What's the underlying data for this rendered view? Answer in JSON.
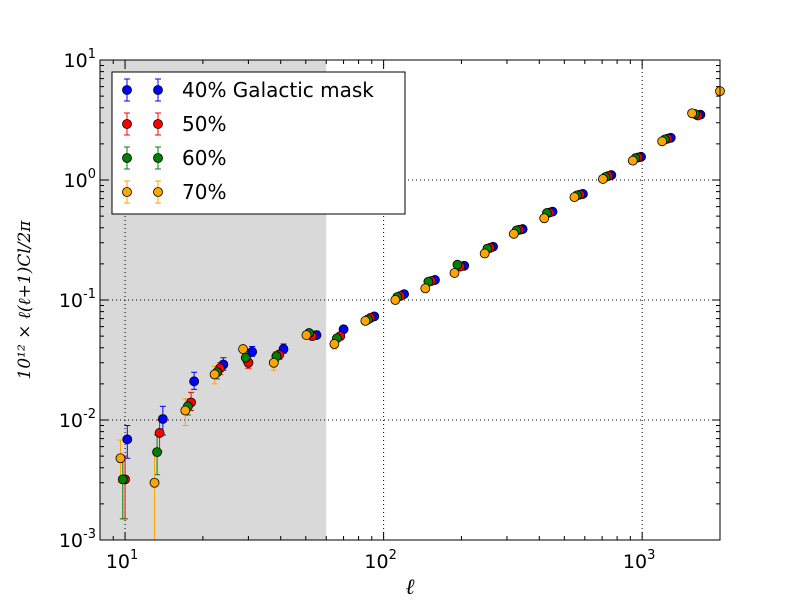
{
  "chart_data": {
    "type": "scatter",
    "xlabel": "ℓ",
    "ylabel": "10¹² × ℓ(ℓ+1)Cl/2π",
    "xscale": "log",
    "yscale": "log",
    "xlim": [
      8,
      2000
    ],
    "ylim": [
      0.001,
      10
    ],
    "grid": "dotted",
    "legend_position": "top-left",
    "shaded_region": {
      "x_from": 8,
      "x_to": 60,
      "color": "#d9d9d9"
    },
    "x_ticks": [
      {
        "value": 10,
        "base": "10",
        "exp": "1"
      },
      {
        "value": 100,
        "base": "10",
        "exp": "2"
      },
      {
        "value": 1000,
        "base": "10",
        "exp": "3"
      }
    ],
    "y_ticks": [
      {
        "value": 0.001,
        "base": "10",
        "exp": "-3"
      },
      {
        "value": 0.01,
        "base": "10",
        "exp": "-2"
      },
      {
        "value": 0.1,
        "base": "10",
        "exp": "-1"
      },
      {
        "value": 1,
        "base": "10",
        "exp": "0"
      },
      {
        "value": 10,
        "base": "10",
        "exp": "1"
      }
    ],
    "series": [
      {
        "name": "40% Galactic mask",
        "color": "#0000ff",
        "x": [
          10.2,
          14,
          18.5,
          24,
          31,
          41,
          55,
          70,
          92,
          120,
          158,
          205,
          265,
          345,
          450,
          590,
          760,
          990,
          1290,
          1680
        ],
        "y": [
          0.0069,
          0.0102,
          0.021,
          0.029,
          0.037,
          0.039,
          0.051,
          0.057,
          0.073,
          0.112,
          0.147,
          0.193,
          0.278,
          0.39,
          0.545,
          0.765,
          1.1,
          1.56,
          2.25,
          3.5
        ],
        "err_low": [
          0.0048,
          0.0075,
          0.018,
          0.026,
          0.034,
          0.036,
          0.048,
          0.054,
          0.07,
          0.108,
          0.142,
          0.187,
          0.27,
          0.38,
          0.53,
          0.745,
          1.07,
          1.52,
          2.19,
          3.39
        ],
        "err_high": [
          0.009,
          0.013,
          0.025,
          0.033,
          0.041,
          0.043,
          0.055,
          0.061,
          0.077,
          0.116,
          0.152,
          0.199,
          0.286,
          0.4,
          0.56,
          0.785,
          1.13,
          1.6,
          2.31,
          3.61
        ]
      },
      {
        "name": "50%",
        "color": "#ff0000",
        "x": [
          10.0,
          13.6,
          18.0,
          23.3,
          30,
          39.5,
          53,
          68,
          89,
          116,
          153,
          198,
          258,
          335,
          438,
          575,
          740,
          965,
          1255,
          1640
        ],
        "y": [
          0.0032,
          0.0078,
          0.014,
          0.027,
          0.03,
          0.035,
          0.05,
          0.05,
          0.071,
          0.108,
          0.144,
          0.19,
          0.272,
          0.385,
          0.535,
          0.755,
          1.08,
          1.54,
          2.21,
          3.45
        ],
        "err_low": [
          0.0015,
          0.0055,
          0.012,
          0.024,
          0.027,
          0.032,
          0.047,
          0.047,
          0.068,
          0.104,
          0.139,
          0.184,
          0.264,
          0.375,
          0.52,
          0.735,
          1.05,
          1.5,
          2.15,
          3.34
        ],
        "err_high": [
          0.005,
          0.01,
          0.017,
          0.03,
          0.033,
          0.038,
          0.053,
          0.053,
          0.074,
          0.112,
          0.149,
          0.196,
          0.28,
          0.395,
          0.55,
          0.775,
          1.11,
          1.58,
          2.27,
          3.56
        ]
      },
      {
        "name": "60%",
        "color": "#008000",
        "x": [
          9.8,
          13.3,
          17.5,
          22.7,
          29.3,
          38.5,
          51.5,
          66,
          87,
          113,
          149,
          193,
          252,
          327,
          428,
          560,
          722,
          942,
          1225,
          1600
        ],
        "y": [
          0.0032,
          0.0054,
          0.013,
          0.025,
          0.033,
          0.034,
          0.053,
          0.048,
          0.069,
          0.106,
          0.142,
          0.197,
          0.268,
          0.38,
          0.53,
          0.745,
          1.06,
          1.52,
          2.18,
          3.55
        ],
        "err_low": [
          0.0015,
          0.0035,
          0.011,
          0.022,
          0.03,
          0.031,
          0.05,
          0.045,
          0.066,
          0.102,
          0.137,
          0.191,
          0.26,
          0.37,
          0.515,
          0.725,
          1.03,
          1.48,
          2.12,
          3.44
        ],
        "err_high": [
          0.005,
          0.0075,
          0.015,
          0.028,
          0.036,
          0.037,
          0.056,
          0.051,
          0.072,
          0.11,
          0.147,
          0.203,
          0.276,
          0.39,
          0.545,
          0.765,
          1.09,
          1.56,
          2.24,
          3.66
        ]
      },
      {
        "name": "70%",
        "color": "#ffa500",
        "x": [
          9.6,
          13.0,
          17.1,
          22.2,
          28.6,
          37.6,
          50.3,
          64.5,
          85,
          111,
          145,
          188,
          246,
          319,
          418,
          547,
          705,
          920,
          1195,
          1560,
          2000
        ],
        "y": [
          0.0048,
          0.003,
          0.012,
          0.024,
          0.039,
          0.03,
          0.051,
          0.043,
          0.067,
          0.1,
          0.125,
          0.168,
          0.244,
          0.356,
          0.48,
          0.72,
          1.02,
          1.45,
          2.1,
          3.6,
          5.5
        ],
        "err_low": [
          0.003,
          0.001,
          0.009,
          0.02,
          0.036,
          0.026,
          0.048,
          0.039,
          0.064,
          0.096,
          0.12,
          0.162,
          0.236,
          0.346,
          0.465,
          0.7,
          0.99,
          1.41,
          2.04,
          3.49,
          5.3
        ],
        "err_high": [
          0.0068,
          0.0055,
          0.015,
          0.028,
          0.042,
          0.034,
          0.054,
          0.047,
          0.07,
          0.104,
          0.13,
          0.174,
          0.252,
          0.366,
          0.495,
          0.74,
          1.05,
          1.49,
          2.16,
          3.71,
          5.7
        ]
      }
    ]
  }
}
